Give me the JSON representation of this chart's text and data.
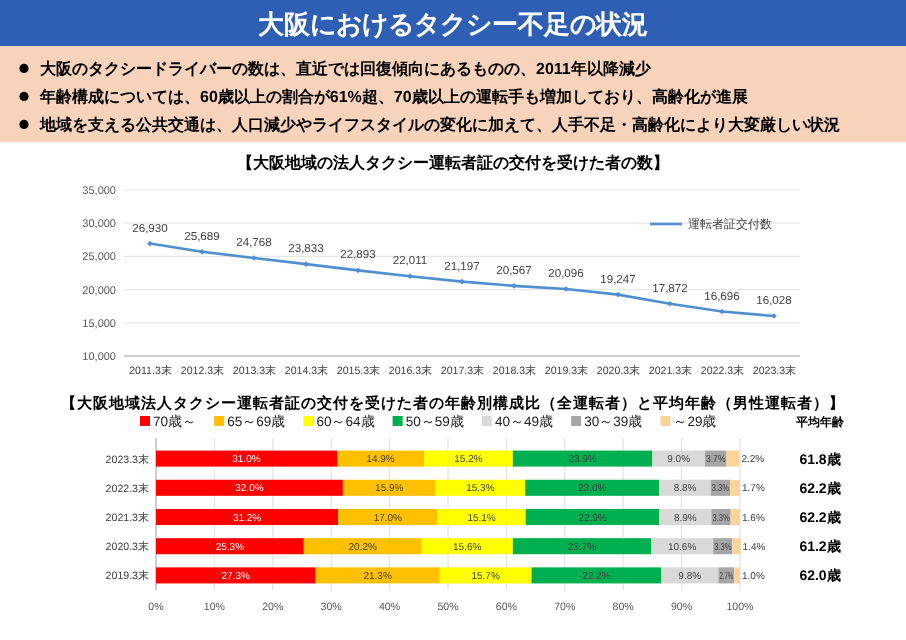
{
  "chart_data": [
    {
      "type": "other",
      "title": "大阪におけるタクシー不足の状況",
      "annotations": [
        "大阪のタクシードライバーの数は、直近では回復傾向にあるものの、2011年以降減少",
        "年齢構成については、60歳以上の割合が61%超、70歳以上の運転手も増加しており、高齢化が進展",
        "地域を支える公共交通は、人口減少やライフスタイルの変化に加えて、人手不足・高齢化により大変厳しい状況"
      ]
    },
    {
      "type": "line",
      "title": "【大阪地域の法人タクシー運転者証の交付を受けた者の数】",
      "categories": [
        "2011.3末",
        "2012.3末",
        "2013.3末",
        "2014.3末",
        "2015.3末",
        "2016.3末",
        "2017.3末",
        "2018.3末",
        "2019.3末",
        "2020.3末",
        "2021.3末",
        "2022.3末",
        "2023.3末"
      ],
      "series": [
        {
          "name": "運転者証交付数",
          "color": "#4f8fd0",
          "values": [
            26930,
            25689,
            24768,
            23833,
            22893,
            22011,
            21197,
            20567,
            20096,
            19247,
            17872,
            16696,
            16028
          ],
          "value_labels": [
            "26,930",
            "25,689",
            "24,768",
            "23,833",
            "22,893",
            "22,011",
            "21,197",
            "20,567",
            "20,096",
            "19,247",
            "17,872",
            "16,696",
            "16,028"
          ]
        }
      ],
      "ylim": [
        10000,
        35000
      ],
      "yticks": [
        {
          "value": 10000,
          "label": "10,000"
        },
        {
          "value": 15000,
          "label": "15,000"
        },
        {
          "value": 20000,
          "label": "20,000"
        },
        {
          "value": 25000,
          "label": "25,000"
        },
        {
          "value": 30000,
          "label": "30,000"
        },
        {
          "value": 35000,
          "label": "35,000"
        }
      ],
      "grid": "y",
      "legend": "top right",
      "marker": "diamond"
    },
    {
      "type": "bar",
      "orientation": "horizontal",
      "stacked": true,
      "title": "【大阪地域法人タクシー運転者証の交付を受けた者の年齢別構成比（全運転者）と平均年齢（男性運転者）】",
      "categories": [
        "2023.3末",
        "2022.3末",
        "2021.3末",
        "2020.3末",
        "2019.3末"
      ],
      "series": [
        {
          "name": "70歳～",
          "color": "#ff0000",
          "values": [
            31.0,
            32.0,
            31.2,
            25.3,
            27.3
          ],
          "value_labels": [
            "31.0%",
            "32.0%",
            "31.2%",
            "25.3%",
            "27.3%"
          ]
        },
        {
          "name": "65～69歳",
          "color": "#ffc000",
          "values": [
            14.9,
            15.9,
            17.0,
            20.2,
            21.3
          ],
          "value_labels": [
            "14.9%",
            "15.9%",
            "17.0%",
            "20.2%",
            "21.3%"
          ]
        },
        {
          "name": "60～64歳",
          "color": "#ffff00",
          "values": [
            15.2,
            15.3,
            15.1,
            15.6,
            15.7
          ],
          "value_labels": [
            "15.2%",
            "15.3%",
            "15.1%",
            "15.6%",
            "15.7%"
          ]
        },
        {
          "name": "50～59歳",
          "color": "#00b050",
          "values": [
            23.9,
            23.0,
            22.9,
            23.7,
            22.2
          ],
          "value_labels": [
            "23.9%",
            "23.0%",
            "22.9%",
            "23.7%",
            "22.2%"
          ]
        },
        {
          "name": "40～49歳",
          "color": "#d9d9d9",
          "values": [
            9.0,
            8.8,
            8.9,
            10.6,
            9.8
          ],
          "value_labels": [
            "9.0%",
            "8.8%",
            "8.9%",
            "10.6%",
            "9.8%"
          ]
        },
        {
          "name": "30～39歳",
          "color": "#a6a6a6",
          "values": [
            3.7,
            3.3,
            3.3,
            3.3,
            2.7
          ],
          "value_labels": [
            "3.7%",
            "3.3%",
            "3.3%",
            "3.3%",
            "2.7%"
          ]
        },
        {
          "name": "～29歳",
          "color": "#fcd49a",
          "values": [
            2.2,
            1.7,
            1.6,
            1.4,
            1.0
          ],
          "value_labels": [
            "2.2%",
            "1.7%",
            "1.6%",
            "1.4%",
            "1.0%"
          ]
        }
      ],
      "xlim": [
        0,
        100
      ],
      "xticks": [
        {
          "value": 0,
          "label": "0%"
        },
        {
          "value": 10,
          "label": "10%"
        },
        {
          "value": 20,
          "label": "20%"
        },
        {
          "value": 30,
          "label": "30%"
        },
        {
          "value": 40,
          "label": "40%"
        },
        {
          "value": 50,
          "label": "50%"
        },
        {
          "value": 60,
          "label": "60%"
        },
        {
          "value": 70,
          "label": "70%"
        },
        {
          "value": 80,
          "label": "80%"
        },
        {
          "value": 90,
          "label": "90%"
        },
        {
          "value": 100,
          "label": "100%"
        }
      ],
      "grid": "x",
      "legend": "top",
      "annotations": [
        "平均年齢",
        "61.8歳",
        "62.2歳",
        "62.2歳",
        "61.2歳",
        "62.0歳"
      ]
    }
  ]
}
